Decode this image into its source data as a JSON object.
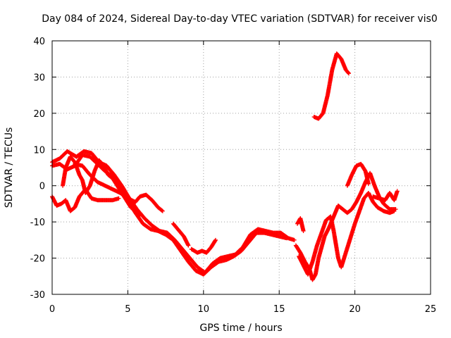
{
  "chart_data": {
    "type": "scatter",
    "title": "Day 084 of 2024, Sidereal Day-to-day VTEC variation (SDTVAR) for receiver vis0",
    "xlabel": "GPS time / hours",
    "ylabel": "SDTVAR / TECUs",
    "xlim": [
      0,
      25
    ],
    "ylim": [
      -30,
      40
    ],
    "xticks": [
      0,
      5,
      10,
      15,
      20,
      25
    ],
    "yticks": [
      -30,
      -20,
      -10,
      0,
      10,
      20,
      30,
      40
    ],
    "grid": true,
    "marker": "+",
    "color": "#ff0000",
    "tracks": [
      [
        [
          0.0,
          6.5
        ],
        [
          0.5,
          7.5
        ],
        [
          1.0,
          9.5
        ],
        [
          1.6,
          8.0
        ],
        [
          2.1,
          9.5
        ],
        [
          2.6,
          9.0
        ],
        [
          3.1,
          6.5
        ],
        [
          3.6,
          5.5
        ],
        [
          4.1,
          3.0
        ],
        [
          4.6,
          0.0
        ],
        [
          5.1,
          -3.5
        ],
        [
          5.6,
          -6.5
        ],
        [
          6.1,
          -9.0
        ],
        [
          6.6,
          -11.0
        ],
        [
          7.1,
          -12.5
        ],
        [
          7.6,
          -13.0
        ],
        [
          8.1,
          -15.0
        ],
        [
          8.6,
          -17.5
        ],
        [
          9.1,
          -20.0
        ],
        [
          9.6,
          -22.5
        ],
        [
          10.1,
          -24.0
        ],
        [
          10.6,
          -21.5
        ],
        [
          11.1,
          -20.0
        ],
        [
          11.6,
          -19.5
        ],
        [
          12.1,
          -19.0
        ],
        [
          12.6,
          -17.0
        ],
        [
          13.1,
          -13.5
        ],
        [
          13.6,
          -12.0
        ],
        [
          14.1,
          -12.5
        ],
        [
          14.6,
          -13.0
        ],
        [
          15.1,
          -13.0
        ],
        [
          15.6,
          -14.5
        ],
        [
          16.0,
          -15.0
        ]
      ],
      [
        [
          0.0,
          5.5
        ],
        [
          0.5,
          6.0
        ],
        [
          1.0,
          4.5
        ],
        [
          1.5,
          5.5
        ],
        [
          2.0,
          8.5
        ],
        [
          2.5,
          8.0
        ],
        [
          3.0,
          6.0
        ],
        [
          3.5,
          4.0
        ],
        [
          4.0,
          2.5
        ],
        [
          4.5,
          -1.0
        ],
        [
          5.0,
          -4.0
        ],
        [
          5.5,
          -7.5
        ],
        [
          6.0,
          -10.5
        ],
        [
          6.5,
          -12.0
        ],
        [
          7.0,
          -12.5
        ],
        [
          7.5,
          -13.5
        ],
        [
          8.0,
          -15.0
        ],
        [
          8.5,
          -18.0
        ],
        [
          9.0,
          -21.0
        ],
        [
          9.5,
          -23.5
        ],
        [
          10.0,
          -24.5
        ],
        [
          10.5,
          -22.5
        ],
        [
          11.0,
          -21.0
        ],
        [
          11.5,
          -20.5
        ],
        [
          12.0,
          -19.5
        ],
        [
          12.5,
          -18.0
        ],
        [
          13.0,
          -15.5
        ],
        [
          13.5,
          -13.0
        ],
        [
          14.0,
          -13.0
        ],
        [
          14.5,
          -13.5
        ],
        [
          15.0,
          -14.0
        ],
        [
          15.5,
          -14.5
        ]
      ],
      [
        [
          0.0,
          -3.0
        ],
        [
          0.3,
          -5.5
        ],
        [
          0.6,
          -5.0
        ],
        [
          0.9,
          -4.0
        ],
        [
          1.2,
          -7.0
        ],
        [
          1.5,
          -6.0
        ],
        [
          1.8,
          -3.0
        ],
        [
          2.2,
          -1.0
        ],
        [
          2.6,
          -3.5
        ],
        [
          3.0,
          -4.0
        ],
        [
          3.5,
          -4.0
        ],
        [
          4.0,
          -4.0
        ],
        [
          4.4,
          -3.5
        ]
      ],
      [
        [
          0.7,
          0.0
        ],
        [
          0.9,
          5.0
        ],
        [
          1.2,
          8.0
        ],
        [
          1.5,
          6.5
        ],
        [
          1.8,
          3.0
        ],
        [
          2.0,
          1.5
        ],
        [
          2.2,
          -2.0
        ],
        [
          2.5,
          0.0
        ],
        [
          2.8,
          4.0
        ],
        [
          3.1,
          7.0
        ],
        [
          3.4,
          5.5
        ],
        [
          3.7,
          3.0
        ],
        [
          4.0,
          2.0
        ],
        [
          4.3,
          0.0
        ],
        [
          4.6,
          -2.0
        ],
        [
          4.9,
          -4.0
        ],
        [
          5.2,
          -6.0
        ],
        [
          5.5,
          -7.0
        ],
        [
          5.8,
          -8.0
        ]
      ],
      [
        [
          1.5,
          6.0
        ],
        [
          2.0,
          5.5
        ],
        [
          2.5,
          3.0
        ],
        [
          3.0,
          1.0
        ],
        [
          3.5,
          0.0
        ],
        [
          4.0,
          -1.0
        ],
        [
          4.5,
          -2.0
        ],
        [
          5.0,
          -3.5
        ],
        [
          5.5,
          -4.5
        ],
        [
          5.8,
          -3.0
        ],
        [
          6.2,
          -2.5
        ],
        [
          6.6,
          -4.0
        ],
        [
          7.0,
          -6.0
        ],
        [
          7.3,
          -7.0
        ]
      ],
      [
        [
          8.0,
          -10.5
        ],
        [
          8.3,
          -12.0
        ],
        [
          8.7,
          -14.0
        ],
        [
          9.0,
          -16.5
        ]
      ],
      [
        [
          9.2,
          -17.5
        ],
        [
          9.6,
          -18.5
        ],
        [
          9.9,
          -18.0
        ],
        [
          10.2,
          -18.5
        ],
        [
          10.5,
          -17.0
        ],
        [
          10.8,
          -15.0
        ]
      ],
      [
        [
          16.1,
          -16.5
        ],
        [
          16.4,
          -18.5
        ],
        [
          16.7,
          -21.0
        ],
        [
          17.0,
          -23.0
        ],
        [
          17.2,
          -26.0
        ],
        [
          17.4,
          -24.5
        ],
        [
          17.6,
          -20.0
        ],
        [
          17.8,
          -17.0
        ],
        [
          18.0,
          -14.0
        ],
        [
          18.3,
          -11.5
        ],
        [
          18.6,
          -8.5
        ],
        [
          18.9,
          -5.5
        ],
        [
          19.2,
          -6.5
        ],
        [
          19.5,
          -7.5
        ],
        [
          19.8,
          -6.5
        ],
        [
          20.1,
          -4.5
        ],
        [
          20.4,
          -2.0
        ],
        [
          20.7,
          1.0
        ],
        [
          21.0,
          3.5
        ],
        [
          21.3,
          0.0
        ],
        [
          21.6,
          -3.0
        ],
        [
          21.9,
          -5.0
        ],
        [
          22.3,
          -6.5
        ],
        [
          22.7,
          -6.5
        ]
      ],
      [
        [
          16.3,
          -19.5
        ],
        [
          16.6,
          -22.0
        ],
        [
          16.9,
          -24.5
        ],
        [
          17.2,
          -21.0
        ],
        [
          17.5,
          -16.5
        ],
        [
          17.8,
          -13.0
        ],
        [
          18.1,
          -9.5
        ],
        [
          18.4,
          -8.5
        ],
        [
          18.6,
          -12.5
        ],
        [
          18.9,
          -20.0
        ],
        [
          19.1,
          -22.5
        ],
        [
          19.4,
          -18.5
        ],
        [
          19.7,
          -14.5
        ],
        [
          20.0,
          -10.5
        ],
        [
          20.3,
          -7.0
        ],
        [
          20.6,
          -3.5
        ],
        [
          20.9,
          -2.0
        ],
        [
          21.2,
          -4.5
        ],
        [
          21.5,
          -6.0
        ],
        [
          21.9,
          -7.0
        ],
        [
          22.3,
          -7.5
        ],
        [
          22.6,
          -7.0
        ]
      ],
      [
        [
          16.2,
          -10.5
        ],
        [
          16.4,
          -9.0
        ],
        [
          16.6,
          -12.5
        ]
      ],
      [
        [
          19.5,
          0.0
        ],
        [
          19.8,
          3.0
        ],
        [
          20.1,
          5.5
        ],
        [
          20.4,
          6.0
        ],
        [
          20.7,
          4.0
        ],
        [
          20.9,
          0.5
        ]
      ],
      [
        [
          21.2,
          -3.0
        ],
        [
          21.6,
          -3.5
        ],
        [
          22.0,
          -4.0
        ],
        [
          22.3,
          -2.0
        ],
        [
          22.6,
          -4.0
        ],
        [
          22.8,
          -1.5
        ]
      ],
      [
        [
          17.3,
          19.0
        ],
        [
          17.6,
          18.5
        ],
        [
          17.9,
          20.0
        ],
        [
          18.2,
          25.0
        ],
        [
          18.5,
          32.0
        ],
        [
          18.8,
          36.5
        ],
        [
          19.1,
          35.0
        ],
        [
          19.4,
          32.0
        ],
        [
          19.6,
          31.0
        ]
      ]
    ]
  }
}
